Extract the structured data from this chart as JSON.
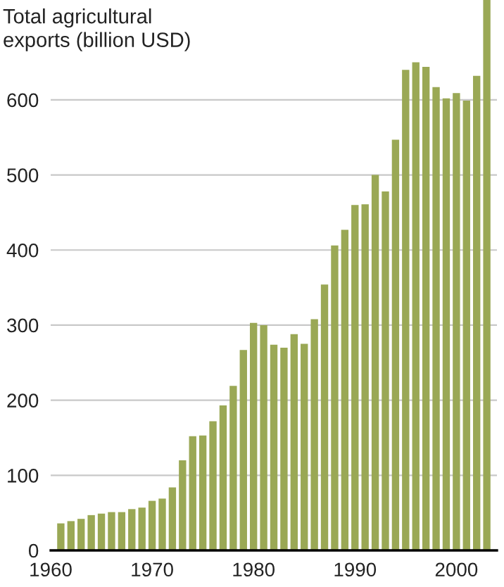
{
  "chart_data": {
    "type": "bar",
    "ylabel": "Total agricultural\nexports (billion USD)",
    "x": [
      1961,
      1962,
      1963,
      1964,
      1965,
      1966,
      1967,
      1968,
      1969,
      1970,
      1971,
      1972,
      1973,
      1974,
      1975,
      1976,
      1977,
      1978,
      1979,
      1980,
      1981,
      1982,
      1983,
      1984,
      1985,
      1986,
      1987,
      1988,
      1989,
      1990,
      1991,
      1992,
      1993,
      1994,
      1995,
      1996,
      1997,
      1998,
      1999,
      2000,
      2001,
      2002,
      2003
    ],
    "series": [
      {
        "color": "#9aa855",
        "values": [
          36,
          39,
          42,
          47,
          49,
          51,
          51,
          55,
          57,
          66,
          69,
          84,
          120,
          152,
          153,
          172,
          193,
          219,
          267,
          303,
          300,
          274,
          270,
          288,
          275,
          308,
          354,
          406,
          427,
          460,
          461,
          500,
          478,
          547,
          640,
          650,
          644,
          617,
          602,
          609,
          599,
          632,
          733
        ]
      }
    ],
    "xlim": [
      1960,
      2004
    ],
    "xticks": [
      1960,
      1970,
      1980,
      1990,
      2000
    ],
    "ylim": [
      0,
      733
    ],
    "yticks": [
      0,
      100,
      200,
      300,
      400,
      500,
      600
    ],
    "grid": "y",
    "legend": false
  }
}
